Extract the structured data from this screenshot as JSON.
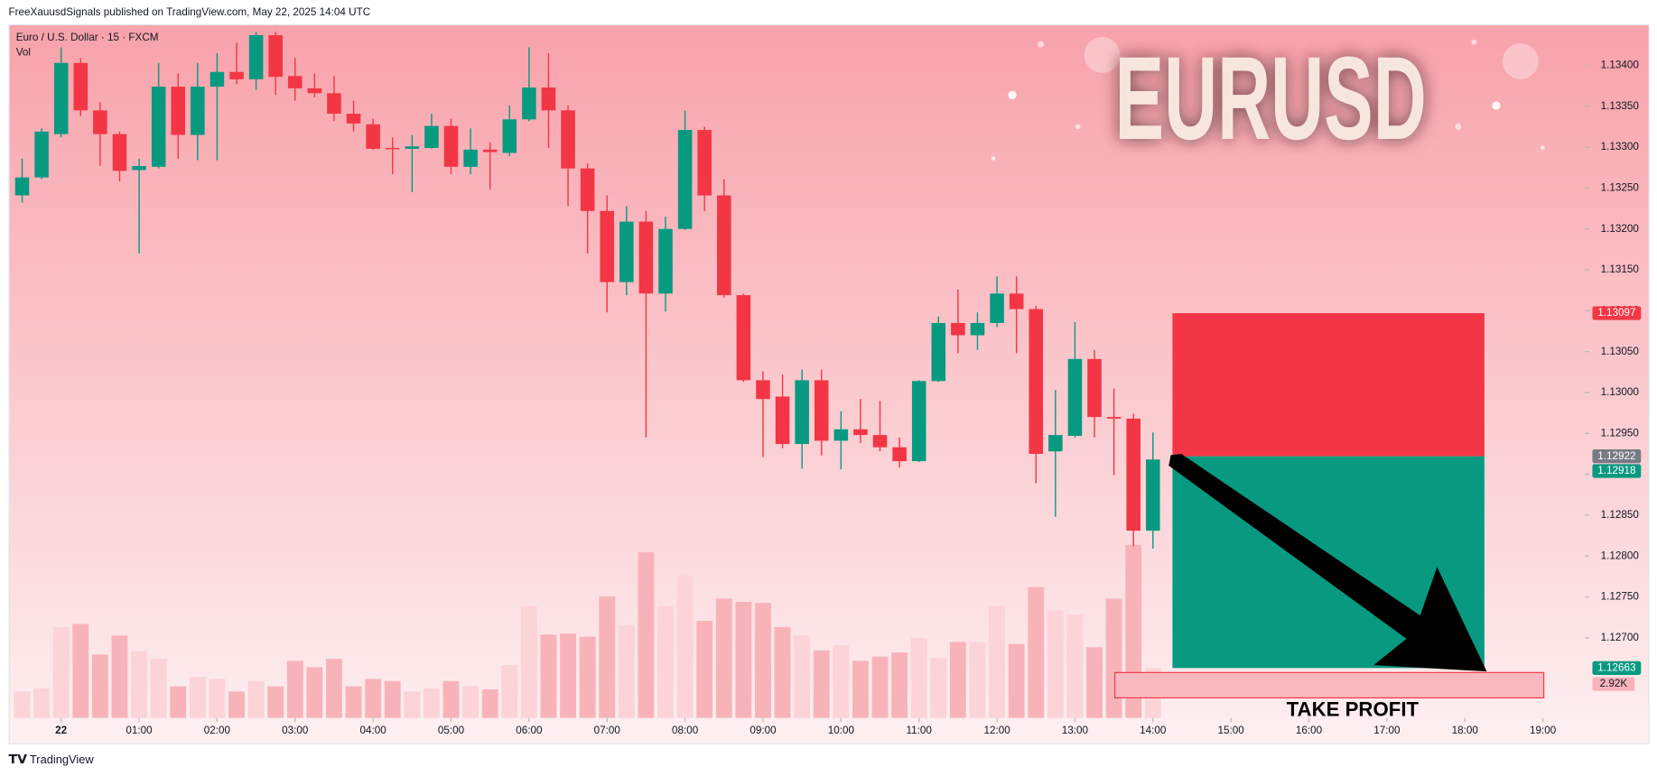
{
  "header": "FreeXauusdSignals published on TradingView.com, May 22, 2025 14:04 UTC",
  "footer": "TradingView",
  "chart_data": {
    "type": "candlestick",
    "title": "EURUSD",
    "symbol": "Euro / U.S. Dollar · 15 · FXCM",
    "volume_name": "Vol",
    "annotation": "TAKE PROFIT",
    "up_color": "#089981",
    "down_color": "#f23645",
    "volume_up_color": "#fcd3d7",
    "volume_down_color": "#f8b3ba",
    "x": [
      -0.5,
      -0.25,
      0,
      0.25,
      0.5,
      0.75,
      1,
      1.25,
      1.5,
      1.75,
      2,
      2.25,
      2.5,
      2.75,
      3,
      3.25,
      3.5,
      3.75,
      4,
      4.25,
      4.5,
      4.75,
      5,
      5.25,
      5.5,
      5.75,
      6,
      6.25,
      6.5,
      6.75,
      7,
      7.25,
      7.5,
      7.75,
      8,
      8.25,
      8.5,
      8.75,
      9,
      9.25,
      9.5,
      9.75,
      10,
      10.25,
      10.5,
      10.75,
      11,
      11.25,
      11.5,
      11.75,
      12,
      12.25,
      12.5,
      12.75,
      13,
      13.25,
      13.5,
      13.75,
      14
    ],
    "open": [
      1.13241,
      1.13263,
      1.13316,
      1.13403,
      1.13345,
      1.13316,
      1.13272,
      1.13276,
      1.13374,
      1.13315,
      1.13374,
      1.13392,
      1.13383,
      1.13437,
      1.13387,
      1.13372,
      1.13366,
      1.13341,
      1.13328,
      1.13299,
      1.13298,
      1.13299,
      1.13326,
      1.13276,
      1.13297,
      1.13293,
      1.13334,
      1.13373,
      1.13345,
      1.13274,
      1.13222,
      1.13135,
      1.13209,
      1.13121,
      1.132,
      1.13321,
      1.13241,
      1.13119,
      1.13015,
      1.12995,
      1.12937,
      1.13015,
      1.12941,
      1.12955,
      1.12948,
      1.12933,
      1.12916,
      1.13014,
      1.13085,
      1.1307,
      1.13085,
      1.13121,
      1.13102,
      1.12928,
      1.12947,
      1.13041,
      1.1297,
      1.12968,
      1.12831
    ],
    "high": [
      1.13286,
      1.13323,
      1.13422,
      1.13409,
      1.13355,
      1.13319,
      1.13286,
      1.13403,
      1.1339,
      1.13403,
      1.13415,
      1.13428,
      1.13441,
      1.13441,
      1.13409,
      1.1339,
      1.13387,
      1.13357,
      1.13335,
      1.13312,
      1.13315,
      1.13341,
      1.13335,
      1.13323,
      1.13306,
      1.13351,
      1.13422,
      1.13415,
      1.13351,
      1.1328,
      1.13241,
      1.13228,
      1.13222,
      1.13215,
      1.13345,
      1.13325,
      1.13261,
      1.13121,
      1.13026,
      1.13022,
      1.13028,
      1.13028,
      1.12977,
      1.12992,
      1.1299,
      1.12945,
      1.13015,
      1.13093,
      1.13126,
      1.13098,
      1.13142,
      1.13142,
      1.13106,
      1.13003,
      1.13086,
      1.13052,
      1.13005,
      1.12974,
      1.12951
    ],
    "low": [
      1.13232,
      1.13261,
      1.13312,
      1.13338,
      1.13277,
      1.13258,
      1.1317,
      1.13274,
      1.13286,
      1.13284,
      1.13284,
      1.13377,
      1.1337,
      1.13364,
      1.13357,
      1.13361,
      1.13332,
      1.13319,
      1.13297,
      1.13267,
      1.13245,
      1.13298,
      1.13267,
      1.13267,
      1.13248,
      1.13289,
      1.13332,
      1.13299,
      1.13228,
      1.1317,
      1.13098,
      1.13119,
      1.12945,
      1.13099,
      1.13199,
      1.13222,
      1.13116,
      1.13013,
      1.12921,
      1.12932,
      1.12907,
      1.12923,
      1.12906,
      1.12938,
      1.12928,
      1.12908,
      1.12915,
      1.13013,
      1.13048,
      1.13052,
      1.1308,
      1.13048,
      1.12889,
      1.12848,
      1.12945,
      1.12945,
      1.12899,
      1.12812,
      1.12809
    ],
    "close": [
      1.13263,
      1.13319,
      1.13403,
      1.13345,
      1.13316,
      1.13271,
      1.13277,
      1.13374,
      1.13315,
      1.13374,
      1.13392,
      1.13383,
      1.13437,
      1.13386,
      1.13372,
      1.13366,
      1.13341,
      1.13329,
      1.13298,
      1.13298,
      1.13301,
      1.13326,
      1.13276,
      1.13297,
      1.13294,
      1.13334,
      1.13373,
      1.13345,
      1.13274,
      1.13222,
      1.13135,
      1.13209,
      1.13121,
      1.132,
      1.13321,
      1.13241,
      1.13119,
      1.13015,
      1.12992,
      1.12937,
      1.13015,
      1.12941,
      1.12955,
      1.12948,
      1.12933,
      1.12916,
      1.13014,
      1.13085,
      1.1307,
      1.13085,
      1.13121,
      1.13102,
      1.12925,
      1.12948,
      1.13041,
      1.1297,
      1.12968,
      1.12831,
      1.12918
    ],
    "volume": [
      1550,
      1736,
      5332,
      5518,
      3720,
      4836,
      3906,
      3472,
      1860,
      2418,
      2294,
      1550,
      2170,
      1860,
      3348,
      2976,
      3472,
      1860,
      2294,
      2170,
      1550,
      1736,
      2170,
      1860,
      1674,
      3100,
      6572,
      4898,
      4960,
      4774,
      7130,
      5456,
      9734,
      6572,
      8370,
      5704,
      7006,
      6820,
      6758,
      5332,
      4836,
      3968,
      4278,
      3348,
      3596,
      3844,
      4712,
      3534,
      4464,
      4464,
      6572,
      4340,
      7688,
      6324,
      6076,
      4154,
      7006,
      10168,
      2920
    ],
    "volume_tag": {
      "value": 2920,
      "label": "2.92K"
    },
    "xlim": [
      -0.66,
      19.54
    ],
    "ylim": [
      1.12602,
      1.13449
    ],
    "xticks": [
      {
        "value": 0,
        "label": "22"
      },
      {
        "value": 1,
        "label": "01:00"
      },
      {
        "value": 2,
        "label": "02:00"
      },
      {
        "value": 3,
        "label": "03:00"
      },
      {
        "value": 4,
        "label": "04:00"
      },
      {
        "value": 5,
        "label": "05:00"
      },
      {
        "value": 6,
        "label": "06:00"
      },
      {
        "value": 7,
        "label": "07:00"
      },
      {
        "value": 8,
        "label": "08:00"
      },
      {
        "value": 9,
        "label": "09:00"
      },
      {
        "value": 10,
        "label": "10:00"
      },
      {
        "value": 11,
        "label": "11:00"
      },
      {
        "value": 12,
        "label": "12:00"
      },
      {
        "value": 13,
        "label": "13:00"
      },
      {
        "value": 14,
        "label": "14:00"
      },
      {
        "value": 15,
        "label": "15:00"
      },
      {
        "value": 16,
        "label": "16:00"
      },
      {
        "value": 17,
        "label": "17:00"
      },
      {
        "value": 18,
        "label": "18:00"
      },
      {
        "value": 19,
        "label": "19:00"
      }
    ],
    "yticks": [
      {
        "value": 1.127,
        "label": "1.12700"
      },
      {
        "value": 1.1275,
        "label": "1.12750"
      },
      {
        "value": 1.128,
        "label": "1.12800"
      },
      {
        "value": 1.1285,
        "label": "1.12850"
      },
      {
        "value": 1.129,
        "label": "1.12900"
      },
      {
        "value": 1.1295,
        "label": "1.12950"
      },
      {
        "value": 1.13,
        "label": "1.13000"
      },
      {
        "value": 1.1305,
        "label": "1.13050"
      },
      {
        "value": 1.131,
        "label": "1.13100"
      },
      {
        "value": 1.1315,
        "label": "1.13150"
      },
      {
        "value": 1.132,
        "label": "1.13200"
      },
      {
        "value": 1.1325,
        "label": "1.13250"
      },
      {
        "value": 1.133,
        "label": "1.13300"
      },
      {
        "value": 1.1335,
        "label": "1.13350"
      },
      {
        "value": 1.134,
        "label": "1.13400"
      }
    ],
    "price_labels": [
      {
        "value": 1.13097,
        "label": "1.13097",
        "color": "#f23645"
      },
      {
        "value": 1.12922,
        "label": "1.12922",
        "color": "#787b86"
      },
      {
        "value": 1.12918,
        "label": "1.12918",
        "color": "#089981"
      },
      {
        "value": 1.12663,
        "label": "1.12663",
        "color": "#089981"
      }
    ],
    "position": {
      "stop": 1.13097,
      "entry": 1.12922,
      "target": 1.12663,
      "start": 14.25,
      "end": 18.25,
      "stop_color": "#f23645",
      "target_color": "#089981"
    }
  }
}
